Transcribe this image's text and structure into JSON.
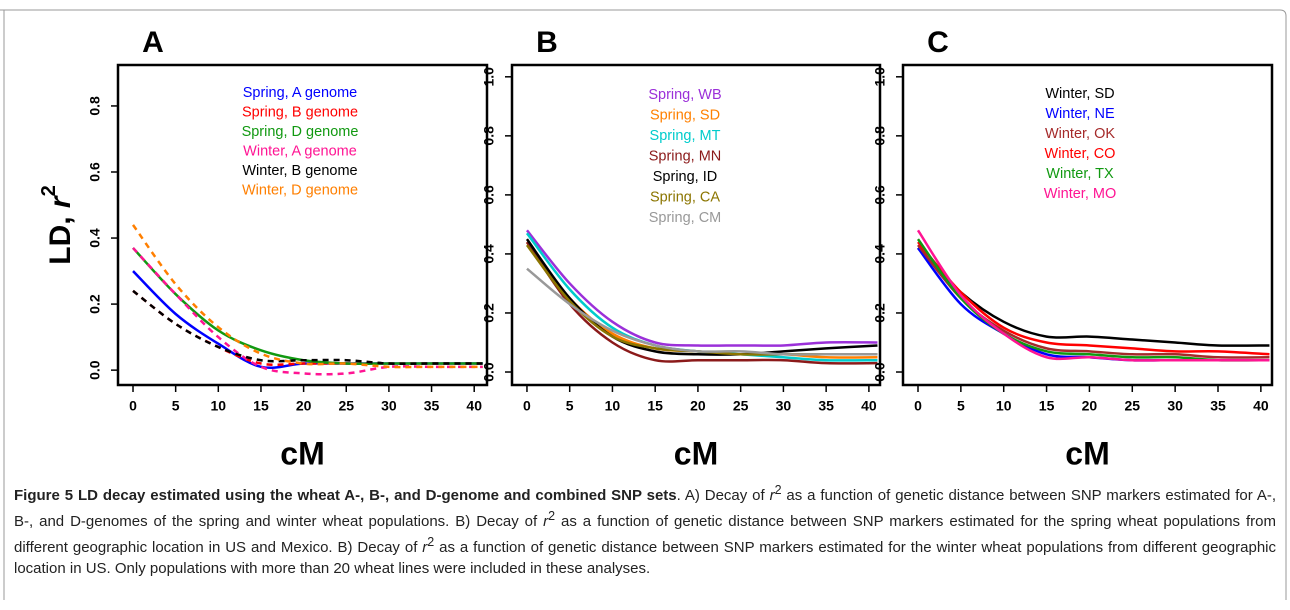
{
  "chart_data": [
    {
      "type": "line",
      "title": "A",
      "xlabel": "cM",
      "ylabel": "LD, r",
      "ylabel_sup": "2",
      "x": [
        0,
        5,
        10,
        15,
        20,
        25,
        30,
        35,
        41
      ],
      "xlim": [
        -1.76,
        41.5
      ],
      "xticks": [
        0,
        5,
        10,
        15,
        20,
        25,
        30,
        35,
        40
      ],
      "ylim": [
        -0.045,
        0.924
      ],
      "yticks": [
        {
          "value": 0,
          "label": "0.0"
        },
        0.2,
        0.4,
        0.6,
        0.8
      ],
      "series": [
        {
          "name": "Spring, A genome",
          "color": "#0000ff",
          "dash": false,
          "values": [
            0.3,
            0.17,
            0.08,
            0.01,
            0.02,
            0.02,
            0.02,
            0.02,
            0.02
          ]
        },
        {
          "name": "Spring, B genome",
          "color": "#ff0000",
          "dash": true,
          "values": [
            0.24,
            0.14,
            0.07,
            0.02,
            0.02,
            0.02,
            0.02,
            0.02,
            0.02
          ]
        },
        {
          "name": "Spring, D genome",
          "color": "#119911",
          "dash": false,
          "values": [
            0.37,
            0.23,
            0.12,
            0.06,
            0.03,
            0.02,
            0.02,
            0.02,
            0.02
          ]
        },
        {
          "name": "Winter, A genome",
          "color": "#ff1493",
          "dash": true,
          "values": [
            0.37,
            0.23,
            0.1,
            0.01,
            -0.01,
            -0.01,
            0.01,
            0.01,
            0.01
          ]
        },
        {
          "name": "Winter, B genome",
          "color": "#000000",
          "dash": true,
          "values": [
            0.24,
            0.14,
            0.07,
            0.03,
            0.03,
            0.03,
            0.02,
            0.02,
            0.02
          ]
        },
        {
          "name": "Winter, D genome",
          "color": "#ff7f00",
          "dash": true,
          "values": [
            0.44,
            0.26,
            0.13,
            0.05,
            0.02,
            0.02,
            0.01,
            0.01,
            0.01
          ]
        }
      ]
    },
    {
      "type": "line",
      "title": "B",
      "xlabel": "cM",
      "x": [
        0,
        5,
        10,
        15,
        20,
        25,
        30,
        35,
        41
      ],
      "xlim": [
        -1.75,
        41.3
      ],
      "xticks": [
        0,
        5,
        10,
        15,
        20,
        25,
        30,
        35,
        40
      ],
      "ylim": [
        -0.044,
        1.04
      ],
      "yticks": [
        {
          "value": 0,
          "label": "0.0"
        },
        0.2,
        0.4,
        0.6,
        0.8,
        {
          "value": 1,
          "label": "1.0"
        }
      ],
      "series": [
        {
          "name": "Spring, WB",
          "color": "#9b30d9",
          "dash": false,
          "values": [
            0.48,
            0.3,
            0.17,
            0.1,
            0.09,
            0.09,
            0.09,
            0.1,
            0.1
          ]
        },
        {
          "name": "Spring, SD",
          "color": "#ff8000",
          "dash": false,
          "values": [
            0.44,
            0.25,
            0.13,
            0.08,
            0.07,
            0.06,
            0.06,
            0.05,
            0.05
          ]
        },
        {
          "name": "Spring, MT",
          "color": "#00cccc",
          "dash": false,
          "values": [
            0.47,
            0.28,
            0.15,
            0.09,
            0.07,
            0.06,
            0.05,
            0.04,
            0.04
          ]
        },
        {
          "name": "Spring, MN",
          "color": "#8b1a1a",
          "dash": false,
          "values": [
            0.44,
            0.23,
            0.1,
            0.04,
            0.04,
            0.04,
            0.04,
            0.03,
            0.03
          ]
        },
        {
          "name": "Spring, ID",
          "color": "#000000",
          "dash": false,
          "values": [
            0.45,
            0.25,
            0.12,
            0.07,
            0.06,
            0.06,
            0.07,
            0.08,
            0.09
          ]
        },
        {
          "name": "Spring, CA",
          "color": "#8b7500",
          "dash": false,
          "values": [
            0.43,
            0.24,
            0.12,
            0.08,
            0.07,
            0.06,
            0.06,
            0.06,
            0.06
          ]
        },
        {
          "name": "Spring, CM",
          "color": "#999999",
          "dash": false,
          "values": [
            0.35,
            0.23,
            0.14,
            0.09,
            0.07,
            0.07,
            0.06,
            0.06,
            0.06
          ]
        }
      ]
    },
    {
      "type": "line",
      "title": "C",
      "xlabel": "cM",
      "x": [
        0,
        5,
        10,
        15,
        20,
        25,
        30,
        35,
        41
      ],
      "xlim": [
        -1.75,
        41.3
      ],
      "xticks": [
        0,
        5,
        10,
        15,
        20,
        25,
        30,
        35,
        40
      ],
      "ylim": [
        -0.044,
        1.04
      ],
      "yticks": [
        {
          "value": 0,
          "label": "0.0"
        },
        0.2,
        0.4,
        0.6,
        0.8,
        {
          "value": 1,
          "label": "1.0"
        }
      ],
      "series": [
        {
          "name": "Winter, SD",
          "color": "#000000",
          "dash": false,
          "values": [
            0.42,
            0.27,
            0.17,
            0.12,
            0.12,
            0.11,
            0.1,
            0.09,
            0.09
          ]
        },
        {
          "name": "Winter, NE",
          "color": "#0000ff",
          "dash": false,
          "values": [
            0.42,
            0.23,
            0.13,
            0.06,
            0.05,
            0.04,
            0.04,
            0.04,
            0.04
          ]
        },
        {
          "name": "Winter, OK",
          "color": "#a52a2a",
          "dash": false,
          "values": [
            0.43,
            0.25,
            0.14,
            0.08,
            0.07,
            0.06,
            0.06,
            0.05,
            0.05
          ]
        },
        {
          "name": "Winter, CO",
          "color": "#ff0000",
          "dash": false,
          "values": [
            0.44,
            0.27,
            0.15,
            0.1,
            0.09,
            0.08,
            0.07,
            0.07,
            0.06
          ]
        },
        {
          "name": "Winter, TX",
          "color": "#119911",
          "dash": false,
          "values": [
            0.45,
            0.25,
            0.13,
            0.07,
            0.06,
            0.05,
            0.05,
            0.04,
            0.04
          ]
        },
        {
          "name": "Winter, MO",
          "color": "#ff1493",
          "dash": false,
          "values": [
            0.48,
            0.26,
            0.13,
            0.05,
            0.05,
            0.04,
            0.04,
            0.04,
            0.04
          ]
        }
      ]
    }
  ],
  "caption": {
    "runs": [
      {
        "kind": "bold",
        "text": "Figure 5 LD decay estimated using the wheat A-, B-, and D-genome and combined SNP sets"
      },
      {
        "kind": "normal",
        "text": ". A) Decay of "
      },
      {
        "kind": "italic",
        "text": "r"
      },
      {
        "kind": "sup",
        "text": "2"
      },
      {
        "kind": "normal",
        "text": " as a function of genetic distance between SNP markers estimated for A-, B-, and D-genomes of the spring and winter wheat populations. B) Decay of "
      },
      {
        "kind": "italic",
        "text": "r"
      },
      {
        "kind": "sup",
        "text": "2"
      },
      {
        "kind": "normal",
        "text": " as a function of genetic distance between SNP markers estimated for the spring wheat populations from different geographic location in US and Mexico. B) Decay of "
      },
      {
        "kind": "italic",
        "text": "r"
      },
      {
        "kind": "sup",
        "text": "2"
      },
      {
        "kind": "normal",
        "text": " as a function of genetic distance between SNP markers estimated for the winter wheat populations from different geographic location in US. Only populations with more than 20 wheat lines were included in these analyses."
      }
    ]
  }
}
